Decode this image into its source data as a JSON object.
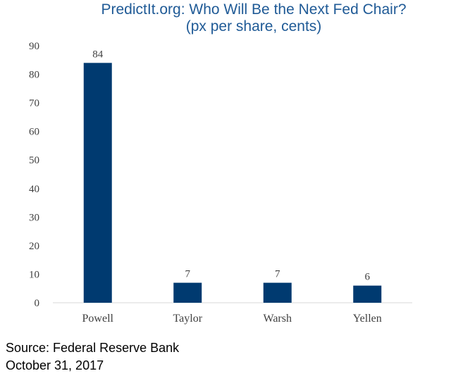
{
  "chart_data": {
    "type": "bar",
    "title": "PredictIt.org: Who Will Be the Next Fed Chair?",
    "subtitle": "(px per share, cents)",
    "categories": [
      "Powell",
      "Taylor",
      "Warsh",
      "Yellen"
    ],
    "values": [
      84,
      7,
      7,
      6
    ],
    "data_labels": [
      "84",
      "7",
      "7",
      "6"
    ],
    "ylim": [
      0,
      90
    ],
    "yticks": [
      0,
      10,
      20,
      30,
      40,
      50,
      60,
      70,
      80,
      90
    ],
    "grid": false,
    "bar_color": "#003a70",
    "title_color": "#1f5a96"
  },
  "notes": {
    "source": "Source: Federal Reserve Bank",
    "date": "October 31, 2017"
  }
}
